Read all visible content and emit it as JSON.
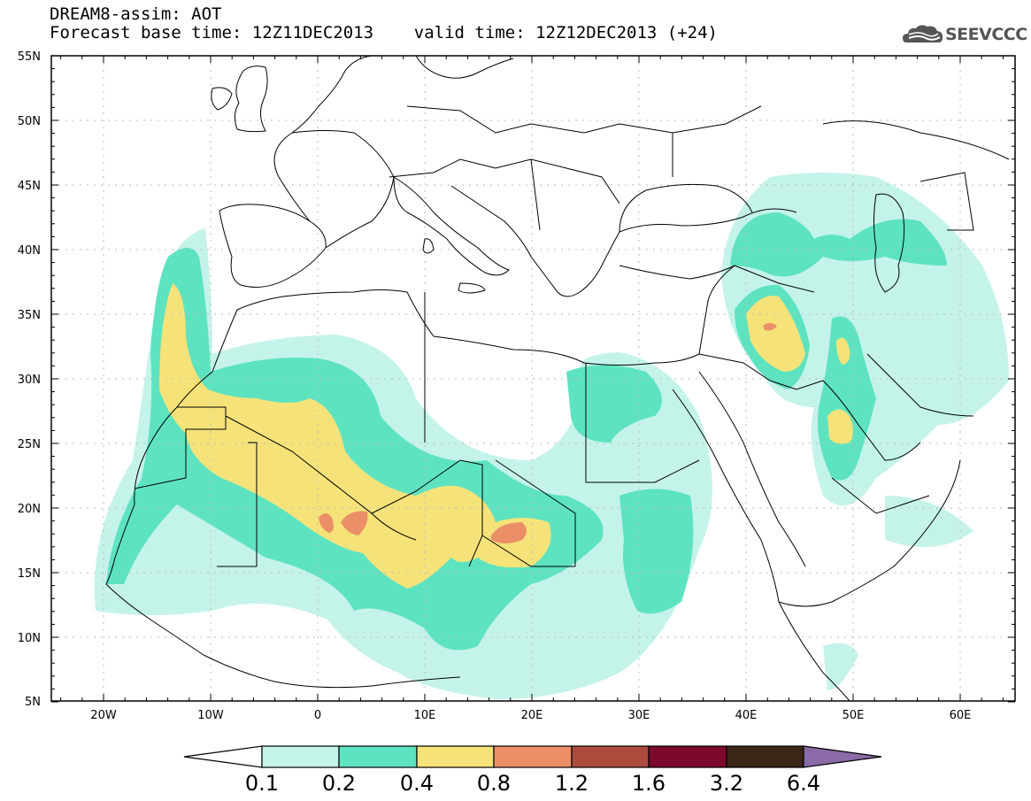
{
  "title_line1": "DREAM8-assim: AOT",
  "title_line2": "Forecast base time: 12Z11DEC2013    valid time: 12Z12DEC2013 (+24)",
  "logo_text": "SEEVCCC",
  "lat_labels": [
    "55N",
    "50N",
    "45N",
    "40N",
    "35N",
    "30N",
    "25N",
    "20N",
    "15N",
    "10N",
    "5N"
  ],
  "lon_labels": [
    "20W",
    "10W",
    "0",
    "10E",
    "20E",
    "30E",
    "40E",
    "50E",
    "60E"
  ],
  "colorbar": {
    "levels": [
      "0.1",
      "0.2",
      "0.4",
      "0.8",
      "1.2",
      "1.6",
      "3.2",
      "6.4"
    ],
    "colors": [
      "#ffffff",
      "#c4f3ea",
      "#5ee3c0",
      "#f5e37a",
      "#ea8f68",
      "#ad4c3e",
      "#7d0a2c",
      "#3b2715",
      "#8a6aa7"
    ]
  },
  "fill_colors": {
    "light": "#c4f3ea",
    "green": "#5ee3c0",
    "yellow": "#f5e37a",
    "orange": "#ea8f68"
  }
}
